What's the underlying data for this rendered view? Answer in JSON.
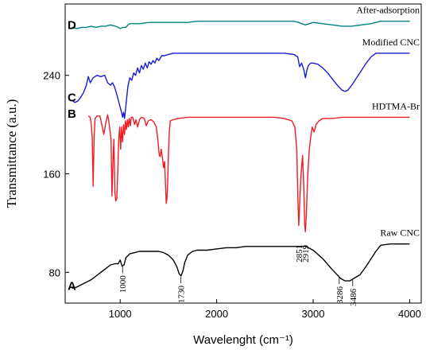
{
  "chart_data": {
    "type": "line",
    "title": "",
    "xlabel": "Wavelenght (cm⁻¹)",
    "ylabel": "Transmittance (a.u.)",
    "xlim": [
      430,
      4120
    ],
    "ylim": [
      55,
      298
    ],
    "x_ticks": [
      1000,
      2000,
      3000,
      4000
    ],
    "x_tick_labels": [
      "1000",
      "2000",
      "3000",
      "4000"
    ],
    "y_ticks": [
      80,
      160,
      240
    ],
    "y_tick_labels": [
      "80",
      "160",
      "240"
    ],
    "grid": false,
    "series": [
      {
        "name": "Raw CNC",
        "letter": "A",
        "color": "#000000",
        "points": [
          [
            500,
            67
          ],
          [
            550,
            68
          ],
          [
            600,
            70
          ],
          [
            650,
            72
          ],
          [
            700,
            74
          ],
          [
            750,
            77
          ],
          [
            800,
            80
          ],
          [
            850,
            83
          ],
          [
            900,
            86
          ],
          [
            950,
            87
          ],
          [
            980,
            87
          ],
          [
            1000,
            90
          ],
          [
            1020,
            85
          ],
          [
            1040,
            86
          ],
          [
            1060,
            92
          ],
          [
            1100,
            95
          ],
          [
            1150,
            96
          ],
          [
            1200,
            97
          ],
          [
            1250,
            97
          ],
          [
            1300,
            97
          ],
          [
            1350,
            97
          ],
          [
            1400,
            97
          ],
          [
            1450,
            96
          ],
          [
            1500,
            94
          ],
          [
            1550,
            90
          ],
          [
            1590,
            84
          ],
          [
            1610,
            79
          ],
          [
            1630,
            77
          ],
          [
            1650,
            81
          ],
          [
            1670,
            88
          ],
          [
            1700,
            94
          ],
          [
            1750,
            97
          ],
          [
            1800,
            98
          ],
          [
            1900,
            98
          ],
          [
            2000,
            99
          ],
          [
            2100,
            100
          ],
          [
            2200,
            100
          ],
          [
            2300,
            101
          ],
          [
            2400,
            101
          ],
          [
            2500,
            101
          ],
          [
            2600,
            101
          ],
          [
            2700,
            101
          ],
          [
            2800,
            101
          ],
          [
            2851,
            101
          ],
          [
            2920,
            101
          ],
          [
            2950,
            100
          ],
          [
            3000,
            98
          ],
          [
            3100,
            91
          ],
          [
            3200,
            82
          ],
          [
            3286,
            75
          ],
          [
            3330,
            73
          ],
          [
            3380,
            73
          ],
          [
            3420,
            75
          ],
          [
            3486,
            78
          ],
          [
            3550,
            85
          ],
          [
            3600,
            91
          ],
          [
            3650,
            97
          ],
          [
            3700,
            102
          ],
          [
            3800,
            103
          ],
          [
            3900,
            103
          ],
          [
            4000,
            103
          ]
        ]
      },
      {
        "name": "HDTMA-Br",
        "letter": "B",
        "color": "#ee1c25",
        "points": [
          [
            670,
            207
          ],
          [
            690,
            206
          ],
          [
            700,
            200
          ],
          [
            710,
            190
          ],
          [
            720,
            150
          ],
          [
            730,
            190
          ],
          [
            740,
            205
          ],
          [
            760,
            207
          ],
          [
            790,
            207
          ],
          [
            810,
            200
          ],
          [
            830,
            192
          ],
          [
            850,
            201
          ],
          [
            870,
            208
          ],
          [
            880,
            204
          ],
          [
            890,
            198
          ],
          [
            905,
            188
          ],
          [
            915,
            142
          ],
          [
            925,
            170
          ],
          [
            935,
            188
          ],
          [
            945,
            145
          ],
          [
            955,
            138
          ],
          [
            965,
            140
          ],
          [
            975,
            162
          ],
          [
            985,
            188
          ],
          [
            995,
            198
          ],
          [
            1005,
            180
          ],
          [
            1015,
            198
          ],
          [
            1025,
            186
          ],
          [
            1035,
            200
          ],
          [
            1045,
            192
          ],
          [
            1055,
            203
          ],
          [
            1065,
            196
          ],
          [
            1075,
            204
          ],
          [
            1085,
            198
          ],
          [
            1095,
            205
          ],
          [
            1105,
            199
          ],
          [
            1115,
            206
          ],
          [
            1130,
            206
          ],
          [
            1150,
            200
          ],
          [
            1165,
            204
          ],
          [
            1180,
            198
          ],
          [
            1200,
            204
          ],
          [
            1220,
            206
          ],
          [
            1250,
            205
          ],
          [
            1270,
            199
          ],
          [
            1290,
            203
          ],
          [
            1320,
            204
          ],
          [
            1350,
            202
          ],
          [
            1375,
            198
          ],
          [
            1390,
            188
          ],
          [
            1405,
            175
          ],
          [
            1415,
            174
          ],
          [
            1425,
            180
          ],
          [
            1440,
            172
          ],
          [
            1450,
            165
          ],
          [
            1460,
            170
          ],
          [
            1470,
            150
          ],
          [
            1478,
            136
          ],
          [
            1485,
            140
          ],
          [
            1492,
            152
          ],
          [
            1500,
            175
          ],
          [
            1510,
            195
          ],
          [
            1520,
            203
          ],
          [
            1550,
            204
          ],
          [
            1600,
            205
          ],
          [
            1700,
            206
          ],
          [
            1800,
            206
          ],
          [
            1900,
            206
          ],
          [
            2000,
            206
          ],
          [
            2100,
            206
          ],
          [
            2200,
            206
          ],
          [
            2300,
            206
          ],
          [
            2400,
            206
          ],
          [
            2500,
            206
          ],
          [
            2600,
            206
          ],
          [
            2700,
            205
          ],
          [
            2780,
            203
          ],
          [
            2810,
            198
          ],
          [
            2830,
            180
          ],
          [
            2842,
            140
          ],
          [
            2851,
            118
          ],
          [
            2860,
            135
          ],
          [
            2875,
            160
          ],
          [
            2890,
            175
          ],
          [
            2903,
            150
          ],
          [
            2912,
            120
          ],
          [
            2919,
            113
          ],
          [
            2928,
            125
          ],
          [
            2945,
            160
          ],
          [
            2960,
            180
          ],
          [
            2975,
            190
          ],
          [
            2990,
            198
          ],
          [
            3010,
            194
          ],
          [
            3030,
            200
          ],
          [
            3060,
            203
          ],
          [
            3100,
            205
          ],
          [
            3200,
            205
          ],
          [
            3300,
            206
          ],
          [
            3400,
            206
          ],
          [
            3500,
            206
          ],
          [
            3600,
            206
          ],
          [
            3700,
            206
          ],
          [
            3800,
            206
          ],
          [
            3900,
            206
          ],
          [
            4000,
            206
          ]
        ]
      },
      {
        "name": "Modified CNC",
        "letter": "C",
        "color": "#1a1ad8",
        "points": [
          [
            500,
            220
          ],
          [
            530,
            218
          ],
          [
            560,
            219
          ],
          [
            590,
            222
          ],
          [
            620,
            226
          ],
          [
            650,
            232
          ],
          [
            670,
            239
          ],
          [
            690,
            234
          ],
          [
            720,
            238
          ],
          [
            760,
            240
          ],
          [
            800,
            239
          ],
          [
            840,
            240
          ],
          [
            870,
            234
          ],
          [
            900,
            232
          ],
          [
            920,
            234
          ],
          [
            940,
            231
          ],
          [
            960,
            226
          ],
          [
            980,
            220
          ],
          [
            1000,
            214
          ],
          [
            1015,
            210
          ],
          [
            1025,
            206
          ],
          [
            1035,
            210
          ],
          [
            1045,
            205
          ],
          [
            1055,
            212
          ],
          [
            1065,
            220
          ],
          [
            1080,
            231
          ],
          [
            1100,
            238
          ],
          [
            1120,
            236
          ],
          [
            1140,
            242
          ],
          [
            1160,
            240
          ],
          [
            1180,
            246
          ],
          [
            1200,
            242
          ],
          [
            1220,
            248
          ],
          [
            1240,
            245
          ],
          [
            1260,
            250
          ],
          [
            1280,
            246
          ],
          [
            1300,
            251
          ],
          [
            1320,
            249
          ],
          [
            1340,
            252
          ],
          [
            1360,
            250
          ],
          [
            1380,
            254
          ],
          [
            1400,
            252
          ],
          [
            1430,
            256
          ],
          [
            1460,
            256
          ],
          [
            1500,
            257
          ],
          [
            1550,
            258
          ],
          [
            1600,
            258
          ],
          [
            1700,
            258
          ],
          [
            1800,
            258
          ],
          [
            1900,
            258
          ],
          [
            2000,
            258
          ],
          [
            2100,
            258
          ],
          [
            2200,
            258
          ],
          [
            2300,
            258
          ],
          [
            2400,
            258
          ],
          [
            2500,
            258
          ],
          [
            2600,
            258
          ],
          [
            2700,
            258
          ],
          [
            2800,
            257
          ],
          [
            2840,
            255
          ],
          [
            2860,
            247
          ],
          [
            2880,
            250
          ],
          [
            2905,
            244
          ],
          [
            2920,
            238
          ],
          [
            2935,
            244
          ],
          [
            2950,
            248
          ],
          [
            2975,
            250
          ],
          [
            3000,
            250
          ],
          [
            3050,
            249
          ],
          [
            3100,
            246
          ],
          [
            3150,
            242
          ],
          [
            3200,
            237
          ],
          [
            3250,
            232
          ],
          [
            3300,
            228
          ],
          [
            3330,
            227
          ],
          [
            3360,
            228
          ],
          [
            3400,
            232
          ],
          [
            3450,
            238
          ],
          [
            3500,
            244
          ],
          [
            3550,
            250
          ],
          [
            3600,
            255
          ],
          [
            3650,
            258
          ],
          [
            3700,
            258
          ],
          [
            3800,
            258
          ],
          [
            3900,
            258
          ],
          [
            4000,
            258
          ]
        ]
      },
      {
        "name": "After-adsorption",
        "letter": "D",
        "color": "#00827f",
        "points": [
          [
            500,
            279
          ],
          [
            550,
            278
          ],
          [
            600,
            279
          ],
          [
            650,
            279
          ],
          [
            700,
            280
          ],
          [
            750,
            279
          ],
          [
            800,
            280
          ],
          [
            850,
            280
          ],
          [
            900,
            281
          ],
          [
            950,
            280
          ],
          [
            980,
            279
          ],
          [
            1000,
            278
          ],
          [
            1030,
            279
          ],
          [
            1060,
            279
          ],
          [
            1080,
            281
          ],
          [
            1100,
            282
          ],
          [
            1150,
            282
          ],
          [
            1200,
            282
          ],
          [
            1300,
            283
          ],
          [
            1400,
            283
          ],
          [
            1500,
            283
          ],
          [
            1600,
            283
          ],
          [
            1700,
            283
          ],
          [
            1800,
            284
          ],
          [
            1900,
            284
          ],
          [
            2000,
            284
          ],
          [
            2100,
            284
          ],
          [
            2200,
            284
          ],
          [
            2300,
            284
          ],
          [
            2400,
            284
          ],
          [
            2500,
            284
          ],
          [
            2600,
            284
          ],
          [
            2700,
            284
          ],
          [
            2800,
            284
          ],
          [
            2850,
            283
          ],
          [
            2880,
            282
          ],
          [
            2920,
            281
          ],
          [
            2960,
            282
          ],
          [
            3000,
            283
          ],
          [
            3100,
            282
          ],
          [
            3200,
            281
          ],
          [
            3300,
            280
          ],
          [
            3400,
            280
          ],
          [
            3500,
            281
          ],
          [
            3600,
            282
          ],
          [
            3700,
            284
          ],
          [
            3800,
            284
          ],
          [
            3900,
            284
          ],
          [
            4000,
            284
          ]
        ]
      }
    ],
    "annotations": [
      {
        "text": "1000",
        "x": 1025,
        "series": "Raw CNC"
      },
      {
        "text": "1730",
        "x": 1630,
        "series": "Raw CNC"
      },
      {
        "text": "3286",
        "x": 3270,
        "series": "Raw CNC"
      },
      {
        "text": "3486",
        "x": 3410,
        "series": "Raw CNC"
      },
      {
        "text": "2851",
        "x": 2851,
        "series": "HDTMA-Br"
      },
      {
        "text": "2919",
        "x": 2919,
        "series": "HDTMA-Br"
      }
    ]
  }
}
